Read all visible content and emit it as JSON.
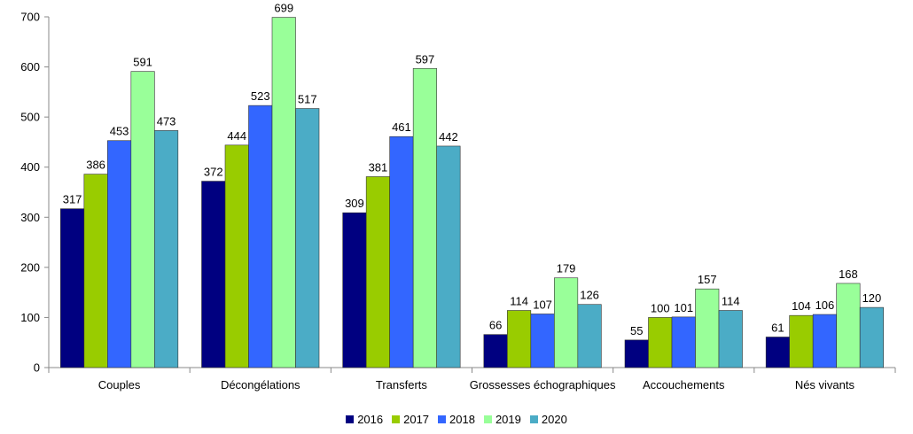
{
  "chart_data": {
    "type": "bar",
    "title": "",
    "xlabel": "",
    "ylabel": "",
    "ylim": [
      0,
      700
    ],
    "yticks": [
      0,
      100,
      200,
      300,
      400,
      500,
      600,
      700
    ],
    "grid": false,
    "legend_position": "bottom",
    "categories": [
      "Couples",
      "Décongélations",
      "Transferts",
      "Grossesses échographiques",
      "Accouchements",
      "Nés vivants"
    ],
    "series": [
      {
        "name": "2016",
        "color": "#000080",
        "values": [
          317,
          372,
          309,
          66,
          55,
          61
        ]
      },
      {
        "name": "2017",
        "color": "#99cc00",
        "values": [
          386,
          444,
          381,
          114,
          100,
          104
        ]
      },
      {
        "name": "2018",
        "color": "#3366ff",
        "values": [
          453,
          523,
          461,
          107,
          101,
          106
        ]
      },
      {
        "name": "2019",
        "color": "#99ff99",
        "values": [
          591,
          699,
          597,
          179,
          157,
          168
        ]
      },
      {
        "name": "2020",
        "color": "#4bacc6",
        "values": [
          473,
          517,
          442,
          126,
          114,
          120
        ]
      }
    ]
  }
}
